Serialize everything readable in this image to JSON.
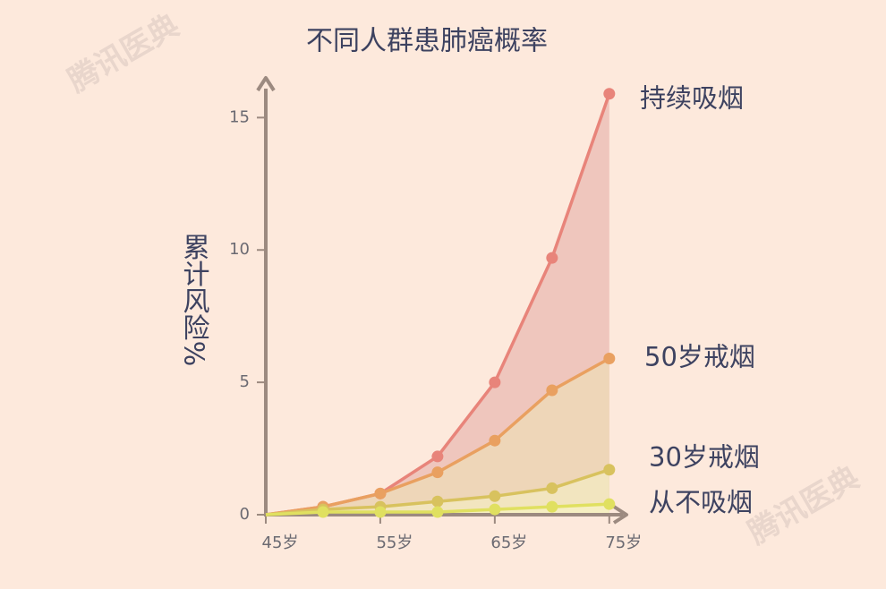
{
  "chart_data": {
    "type": "line",
    "title": "不同人群患肺癌概率",
    "y_label": "累计风险%",
    "watermark": "腾讯医典",
    "x": [
      45,
      50,
      55,
      60,
      65,
      70,
      75
    ],
    "xlim": [
      45,
      76.5
    ],
    "xticks": [
      {
        "value": 45,
        "label": "45岁"
      },
      {
        "value": 55,
        "label": "55岁"
      },
      {
        "value": 65,
        "label": "65岁"
      },
      {
        "value": 75,
        "label": "75岁"
      }
    ],
    "ylim": [
      0,
      16.5
    ],
    "yticks": [
      0,
      5,
      10,
      15
    ],
    "series": [
      {
        "name": "持续吸烟",
        "color": "#e8847a",
        "fill": "#efc6bd",
        "values": [
          0,
          0.3,
          0.8,
          2.2,
          5.0,
          9.7,
          15.9
        ]
      },
      {
        "name": "50岁戒烟",
        "color": "#e9a060",
        "fill": "#eed6b8",
        "values": [
          0,
          0.3,
          0.8,
          1.6,
          2.8,
          4.7,
          5.9
        ]
      },
      {
        "name": "30岁戒烟",
        "color": "#d8c25e",
        "fill": "#f2e5bf",
        "values": [
          0,
          0.2,
          0.3,
          0.5,
          0.7,
          1.0,
          1.7
        ]
      },
      {
        "name": "从不吸烟",
        "color": "#e0e060",
        "fill": "#f6efc2",
        "values": [
          0,
          0.1,
          0.1,
          0.1,
          0.2,
          0.3,
          0.4
        ]
      }
    ]
  }
}
